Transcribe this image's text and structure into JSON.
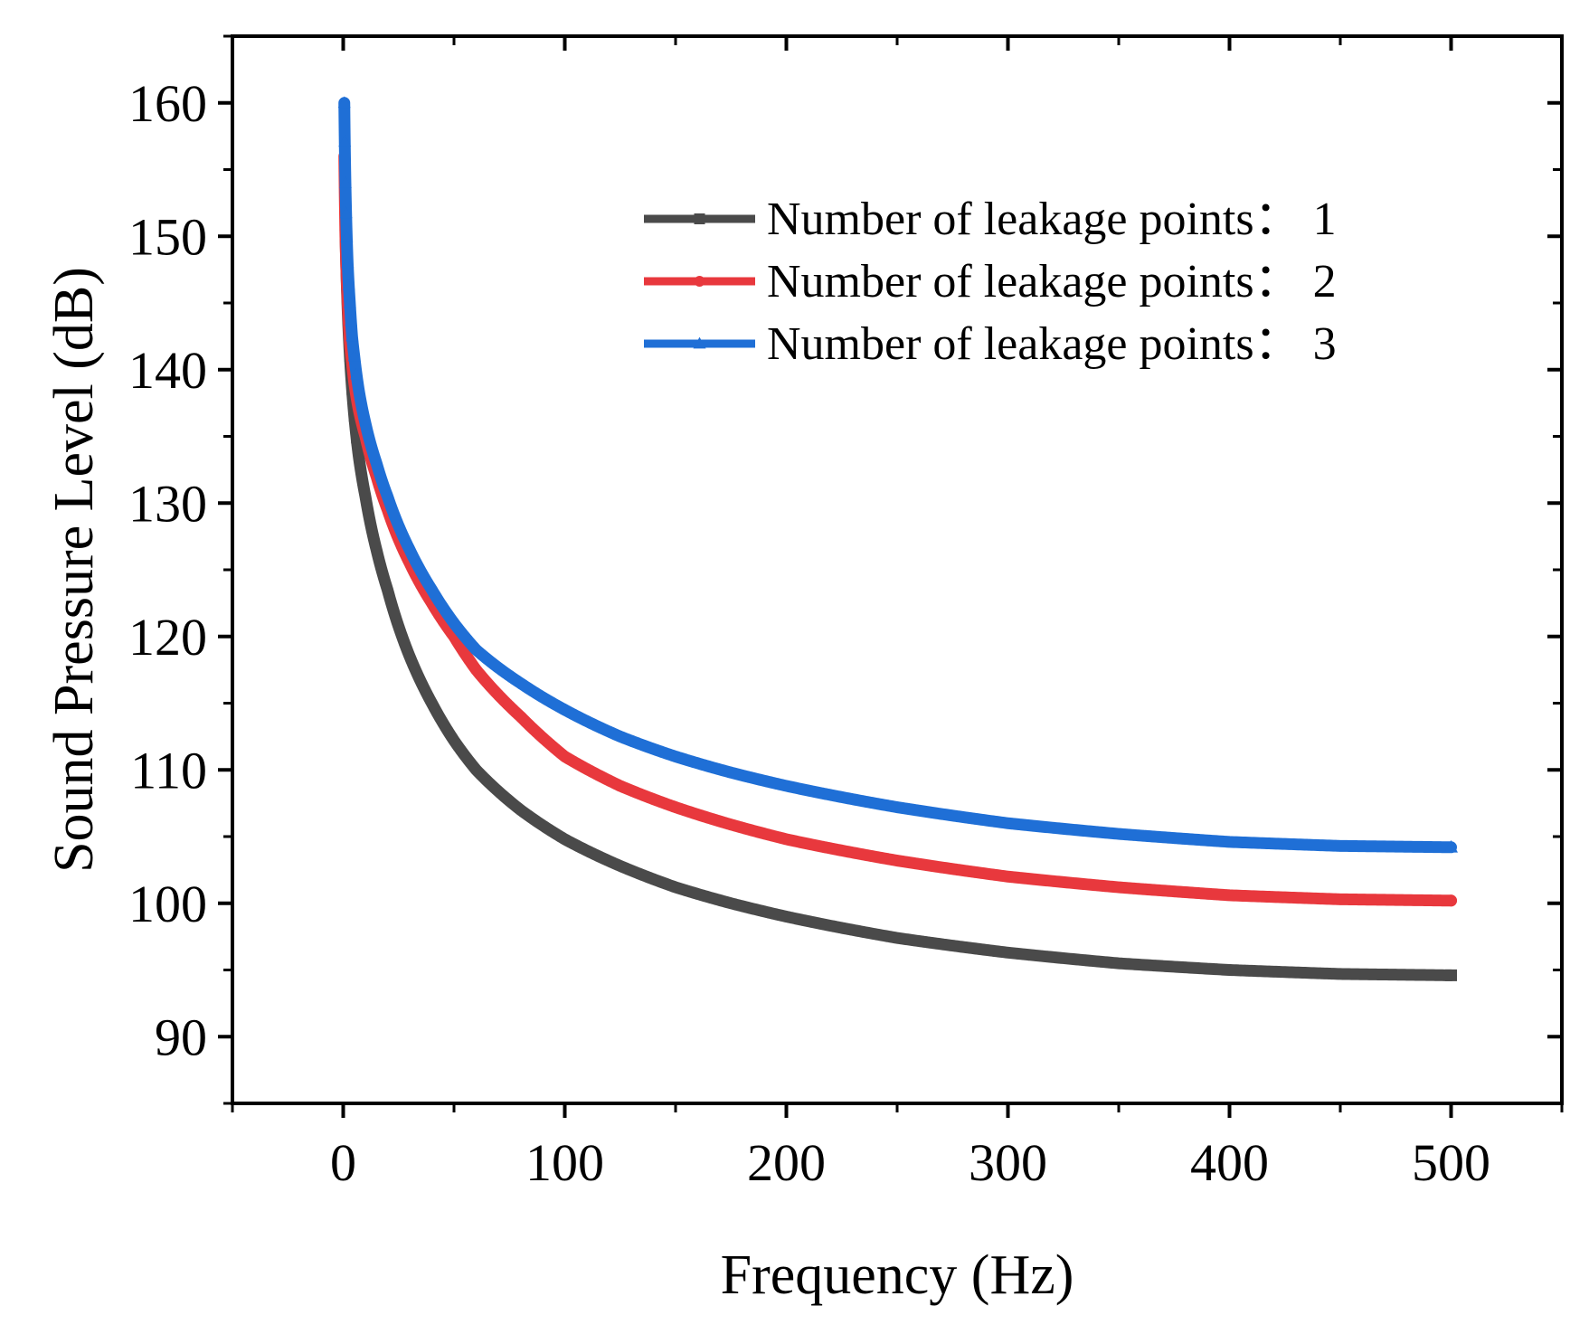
{
  "chart_data": {
    "type": "line",
    "title": "",
    "xlabel": "Frequency (Hz)",
    "ylabel": "Sound Pressure Level (dB)",
    "xlim": [
      -50,
      550
    ],
    "ylim": [
      85,
      165
    ],
    "xticks": [
      0,
      100,
      200,
      300,
      400,
      500
    ],
    "yticks": [
      90,
      100,
      110,
      120,
      130,
      140,
      150,
      160
    ],
    "xtick_labels": [
      "0",
      "100",
      "200",
      "300",
      "400",
      "500"
    ],
    "ytick_labels": [
      "90",
      "100",
      "110",
      "120",
      "130",
      "140",
      "150",
      "160"
    ],
    "grid": false,
    "legend_position": "top-right",
    "series": [
      {
        "name": "Number of leakage points： 1",
        "color": "#4a4a4a",
        "marker": "square",
        "x": [
          1,
          2,
          3,
          4,
          5,
          7,
          10,
          15,
          20,
          30,
          40,
          50,
          60,
          80,
          100,
          125,
          150,
          175,
          200,
          250,
          300,
          350,
          400,
          450,
          500
        ],
        "y": [
          150.5,
          144.5,
          141,
          138.5,
          136.5,
          133.5,
          130.5,
          126.5,
          123.5,
          118.5,
          115,
          112.2,
          110,
          107,
          104.8,
          102.8,
          101.2,
          100,
          99,
          97.4,
          96.3,
          95.5,
          95,
          94.7,
          94.6
        ]
      },
      {
        "name": "Number of leakage points： 2",
        "color": "#e8383d",
        "marker": "circle",
        "x": [
          0.5,
          1,
          2,
          3,
          4,
          5,
          7,
          10,
          15,
          20,
          30,
          40,
          50,
          60,
          80,
          100,
          125,
          150,
          175,
          200,
          250,
          300,
          350,
          400,
          450,
          500
        ],
        "y": [
          156,
          150,
          145,
          142,
          140.5,
          139,
          137,
          135,
          132,
          129.5,
          125.5,
          122.5,
          120,
          117.5,
          114,
          111,
          108.8,
          107.2,
          105.9,
          104.8,
          103.2,
          102,
          101.2,
          100.6,
          100.3,
          100.2
        ]
      },
      {
        "name": "Number of leakage points： 3",
        "color": "#1f6fd6",
        "marker": "triangle",
        "x": [
          0.5,
          1,
          2,
          3,
          4,
          5,
          7,
          10,
          15,
          20,
          30,
          40,
          50,
          60,
          80,
          100,
          125,
          150,
          175,
          200,
          250,
          300,
          350,
          400,
          450,
          500
        ],
        "y": [
          160,
          154,
          148,
          145,
          142.5,
          141,
          138.5,
          136,
          133,
          130.5,
          126.5,
          123.5,
          121,
          119,
          116.5,
          114.5,
          112.5,
          111,
          109.8,
          108.8,
          107.2,
          106,
          105.2,
          104.6,
          104.3,
          104.2
        ]
      }
    ]
  }
}
